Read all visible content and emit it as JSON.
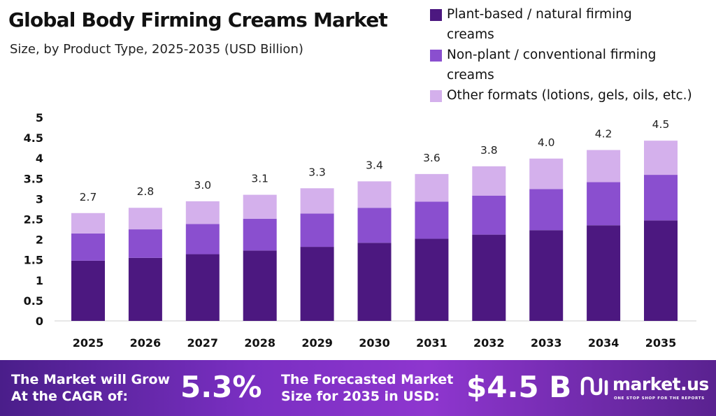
{
  "header": {
    "title": "Global Body Firming Creams Market",
    "subtitle": "Size, by Product Type, 2025-2035 (USD Billion)"
  },
  "legend": [
    {
      "label": "Plant-based / natural firming",
      "label2": "creams",
      "color": "#4c1880"
    },
    {
      "label": "Non-plant / conventional firming",
      "label2": "creams",
      "color": "#8a4fcf"
    },
    {
      "label": "Other formats (lotions, gels, oils, etc.)",
      "label2": "",
      "color": "#d4b0ec"
    }
  ],
  "chart_data": {
    "type": "bar",
    "stacked": true,
    "categories": [
      "2025",
      "2026",
      "2027",
      "2028",
      "2029",
      "2030",
      "2031",
      "2032",
      "2033",
      "2034",
      "2035"
    ],
    "series": [
      {
        "name": "Plant-based / natural firming creams",
        "color": "#4c1880",
        "values": [
          1.48,
          1.55,
          1.64,
          1.73,
          1.82,
          1.92,
          2.02,
          2.12,
          2.23,
          2.35,
          2.47
        ]
      },
      {
        "name": "Non-plant / conventional firming creams",
        "color": "#8a4fcf",
        "values": [
          0.67,
          0.7,
          0.74,
          0.78,
          0.82,
          0.86,
          0.91,
          0.96,
          1.01,
          1.06,
          1.12
        ]
      },
      {
        "name": "Other formats (lotions, gels, oils, etc.)",
        "color": "#d4b0ec",
        "values": [
          0.5,
          0.53,
          0.56,
          0.59,
          0.62,
          0.65,
          0.68,
          0.72,
          0.75,
          0.79,
          0.84
        ]
      }
    ],
    "totals_labels": [
      "2.7",
      "2.8",
      "3.0",
      "3.1",
      "3.3",
      "3.4",
      "3.6",
      "3.8",
      "4.0",
      "4.2",
      "4.5"
    ],
    "ylim": [
      0,
      5
    ],
    "yticks": [
      "0",
      "0.5",
      "1",
      "1.5",
      "2",
      "2.5",
      "3",
      "3.5",
      "4",
      "4.5",
      "5"
    ],
    "grid": false,
    "legend_position": "top-right"
  },
  "footer": {
    "cagr_label_line1": "The Market will Grow",
    "cagr_label_line2": "At the CAGR of:",
    "cagr_value": "5.3%",
    "forecast_label_line1": "The Forecasted Market",
    "forecast_label_line2": "Size for 2035 in USD:",
    "forecast_value": "$4.5 B",
    "brand_name": "market.us",
    "brand_tagline": "ONE STOP SHOP FOR THE REPORTS",
    "background_color": "#7a2fc2"
  }
}
